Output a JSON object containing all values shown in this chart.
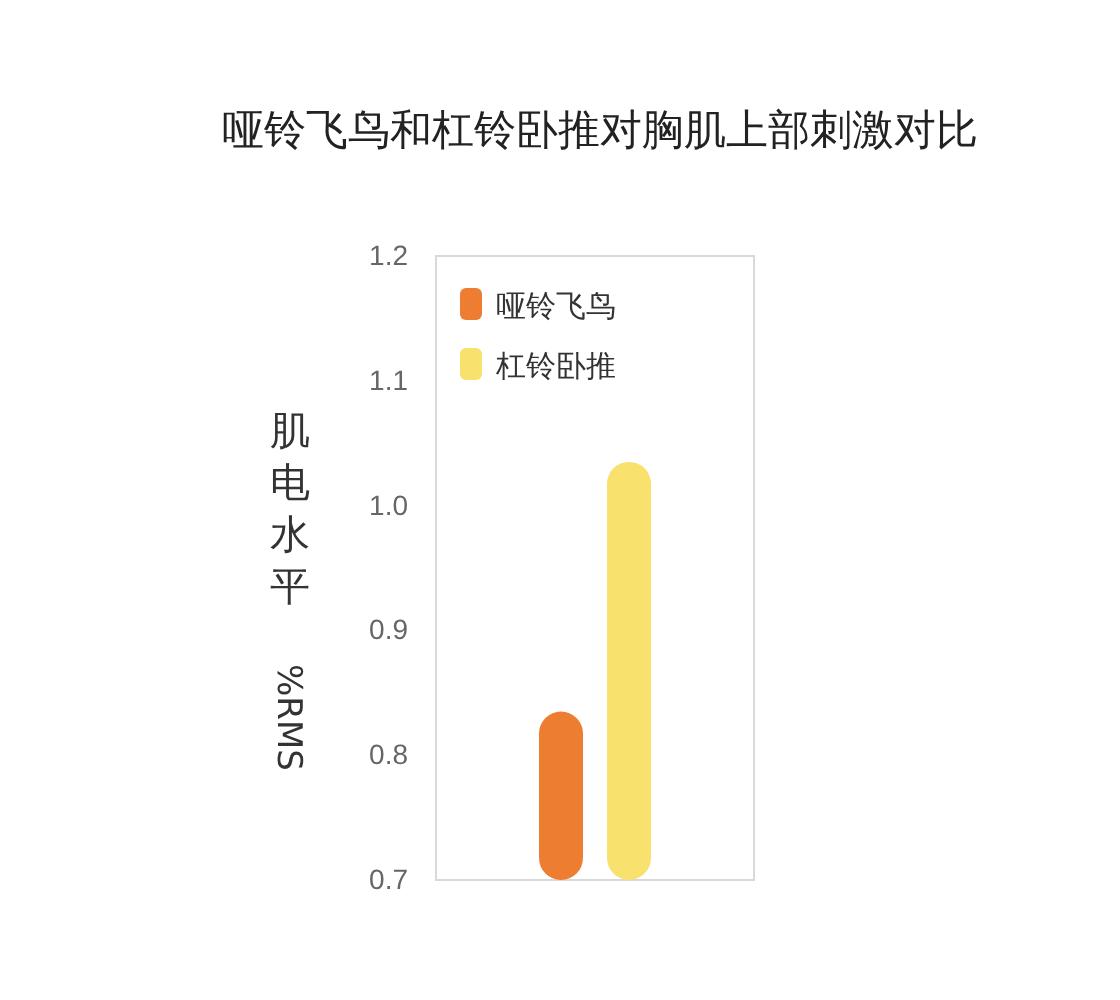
{
  "chart_data": {
    "type": "bar",
    "title": "哑铃飞鸟和杠铃卧推对胸肌上部刺激对比",
    "ylabel": "肌电水平 %RMS",
    "categories": [
      null
    ],
    "series": [
      {
        "name": "哑铃飞鸟",
        "color": "#ed7d31",
        "values": [
          0.835
        ]
      },
      {
        "name": "杠铃卧推",
        "color": "#f8e16c",
        "values": [
          1.035
        ]
      }
    ],
    "ylim": [
      0.7,
      1.2
    ],
    "yticks": [
      {
        "value": 0.7,
        "label": "0.7"
      },
      {
        "value": 0.8,
        "label": "0.8"
      },
      {
        "value": 0.9,
        "label": "0.9"
      },
      {
        "value": 1.0,
        "label": "1.0"
      },
      {
        "value": 1.1,
        "label": "1.1"
      },
      {
        "value": 1.2,
        "label": "1.2"
      }
    ],
    "grid": false,
    "legend": "top left"
  }
}
